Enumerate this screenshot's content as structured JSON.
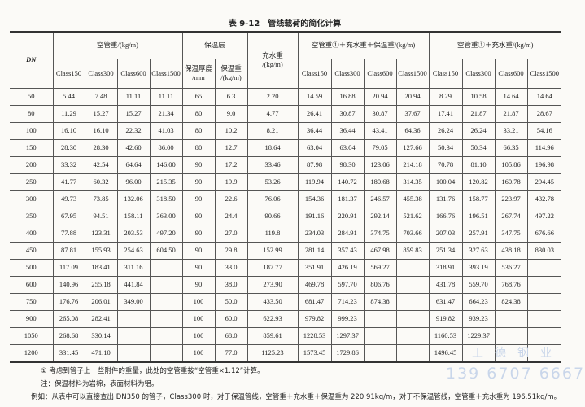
{
  "title": "表 9-12　管线载荷的简化计算",
  "headers": {
    "dn": "DN",
    "empty_pipe": "空管重/(kg/m)",
    "insulation": "保温层",
    "water": "充水重\n/(kg/m)",
    "total_insulated": "空管重①＋充水重＋保温重/(kg/m)",
    "total_bare": "空管重①＋充水重/(kg/m)",
    "classes": [
      "Class150",
      "Class300",
      "Class600",
      "Class1500"
    ],
    "ins_thickness": "保温厚度\n/mm",
    "ins_weight": "保温重\n/(kg/m)"
  },
  "rows": [
    [
      "50",
      "5.44",
      "7.48",
      "11.11",
      "11.11",
      "65",
      "6.3",
      "2.20",
      "14.59",
      "16.88",
      "20.94",
      "20.94",
      "8.29",
      "10.58",
      "14.64",
      "14.64"
    ],
    [
      "80",
      "11.29",
      "15.27",
      "15.27",
      "21.34",
      "80",
      "9.0",
      "4.77",
      "26.41",
      "30.87",
      "30.87",
      "37.67",
      "17.41",
      "21.87",
      "21.87",
      "28.67"
    ],
    [
      "100",
      "16.10",
      "16.10",
      "22.32",
      "41.03",
      "80",
      "10.2",
      "8.21",
      "36.44",
      "36.44",
      "43.41",
      "64.36",
      "26.24",
      "26.24",
      "33.21",
      "54.16"
    ],
    [
      "150",
      "28.30",
      "28.30",
      "42.60",
      "86.00",
      "80",
      "12.7",
      "18.64",
      "63.04",
      "63.04",
      "79.05",
      "127.66",
      "50.34",
      "50.34",
      "66.35",
      "114.96"
    ],
    [
      "200",
      "33.32",
      "42.54",
      "64.64",
      "146.00",
      "90",
      "17.2",
      "33.46",
      "87.98",
      "98.30",
      "123.06",
      "214.18",
      "70.78",
      "81.10",
      "105.86",
      "196.98"
    ],
    [
      "250",
      "41.77",
      "60.32",
      "96.00",
      "215.35",
      "90",
      "19.9",
      "53.26",
      "119.94",
      "140.72",
      "180.68",
      "314.35",
      "100.04",
      "120.82",
      "160.78",
      "294.45"
    ],
    [
      "300",
      "49.73",
      "73.85",
      "132.06",
      "318.50",
      "90",
      "22.6",
      "76.06",
      "154.36",
      "181.37",
      "246.57",
      "455.38",
      "131.76",
      "158.77",
      "223.97",
      "432.78"
    ],
    [
      "350",
      "67.95",
      "94.51",
      "158.11",
      "363.00",
      "90",
      "24.4",
      "90.66",
      "191.16",
      "220.91",
      "292.14",
      "521.62",
      "166.76",
      "196.51",
      "267.74",
      "497.22"
    ],
    [
      "400",
      "77.88",
      "123.31",
      "203.53",
      "497.20",
      "90",
      "27.0",
      "119.8",
      "234.03",
      "284.91",
      "374.75",
      "703.66",
      "207.03",
      "257.91",
      "347.75",
      "676.66"
    ],
    [
      "450",
      "87.81",
      "155.93",
      "254.63",
      "604.50",
      "90",
      "29.8",
      "152.99",
      "281.14",
      "357.43",
      "467.98",
      "859.83",
      "251.34",
      "327.63",
      "438.18",
      "830.03"
    ],
    [
      "500",
      "117.09",
      "183.41",
      "311.16",
      "",
      "90",
      "33.0",
      "187.77",
      "351.91",
      "426.19",
      "569.27",
      "",
      "318.91",
      "393.19",
      "536.27",
      ""
    ],
    [
      "600",
      "140.96",
      "255.18",
      "441.84",
      "",
      "90",
      "38.0",
      "273.90",
      "469.78",
      "597.70",
      "806.76",
      "",
      "431.78",
      "559.70",
      "768.76",
      ""
    ],
    [
      "750",
      "176.76",
      "206.01",
      "349.00",
      "",
      "100",
      "50.0",
      "433.50",
      "681.47",
      "714.23",
      "874.38",
      "",
      "631.47",
      "664.23",
      "824.38",
      ""
    ],
    [
      "900",
      "265.08",
      "282.41",
      "",
      "",
      "100",
      "60.0",
      "622.93",
      "979.82",
      "999.23",
      "",
      "",
      "919.82",
      "939.23",
      "",
      ""
    ],
    [
      "1050",
      "268.68",
      "330.14",
      "",
      "",
      "100",
      "68.0",
      "859.61",
      "1228.53",
      "1297.37",
      "",
      "",
      "1160.53",
      "1229.37",
      "",
      ""
    ],
    [
      "1200",
      "331.45",
      "471.10",
      "",
      "",
      "100",
      "77.0",
      "1125.23",
      "1573.45",
      "1729.86",
      "",
      "",
      "1496.45",
      "",
      "",
      ""
    ]
  ],
  "notes": [
    "① 考虑到管子上一些附件的重量，此处的空管重按“空管重×1.12”计算。",
    "注：保温材料为岩棉，表面材料为铝。",
    "例如：从表中可以直接查出 DN350 的管子，Class300 时，对于保温管线，空管重＋充水重＋保温重为 220.91kg/m，对于不保温管线，空管重＋充水重为 196.51kg/m。"
  ],
  "watermark": {
    "text": "王德钢业",
    "phone": "139 6707 6667"
  }
}
